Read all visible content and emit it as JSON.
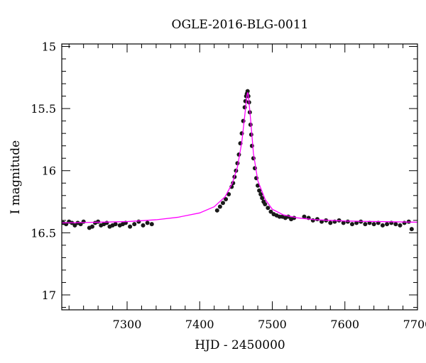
{
  "chart_data": {
    "type": "scatter",
    "title": "OGLE-2016-BLG-0011",
    "xlabel": "HJD - 2450000",
    "ylabel": "I magnitude",
    "xlim": [
      7210,
      7700
    ],
    "ylim": [
      17.12,
      14.98
    ],
    "y_inverted": true,
    "x_ticks": [
      7300,
      7400,
      7500,
      7600,
      7700
    ],
    "y_ticks": [
      15,
      15.5,
      16,
      16.5,
      17
    ],
    "x_tick_labels": [
      "7300",
      "7400",
      "7500",
      "7600",
      "7700"
    ],
    "y_tick_labels": [
      "15",
      "15.5",
      "16",
      "16.5",
      "17"
    ],
    "grid": false,
    "series": [
      {
        "kind": "points",
        "color": "#1a1a1a",
        "x": [
          7212,
          7216,
          7220,
          7224,
          7228,
          7232,
          7236,
          7240,
          7248,
          7252,
          7256,
          7260,
          7264,
          7268,
          7272,
          7276,
          7280,
          7284,
          7290,
          7294,
          7298,
          7304,
          7310,
          7316,
          7322,
          7328,
          7334,
          7424,
          7428,
          7432,
          7436,
          7440,
          7444,
          7446,
          7448,
          7450,
          7452,
          7454,
          7456,
          7458,
          7460,
          7462,
          7463,
          7464,
          7465,
          7466,
          7467,
          7468,
          7469,
          7470,
          7471,
          7472,
          7474,
          7476,
          7478,
          7480,
          7482,
          7484,
          7486,
          7488,
          7490,
          7494,
          7498,
          7502,
          7506,
          7510,
          7514,
          7518,
          7522,
          7526,
          7530,
          7544,
          7550,
          7556,
          7562,
          7568,
          7574,
          7580,
          7586,
          7592,
          7598,
          7604,
          7610,
          7616,
          7622,
          7628,
          7634,
          7640,
          7646,
          7652,
          7658,
          7664,
          7670,
          7676,
          7682,
          7688,
          7692
        ],
        "y": [
          16.42,
          16.43,
          16.41,
          16.42,
          16.44,
          16.42,
          16.43,
          16.41,
          16.46,
          16.45,
          16.42,
          16.41,
          16.44,
          16.43,
          16.42,
          16.45,
          16.44,
          16.43,
          16.44,
          16.43,
          16.42,
          16.45,
          16.43,
          16.41,
          16.44,
          16.42,
          16.43,
          16.32,
          16.29,
          16.26,
          16.23,
          16.19,
          16.13,
          16.1,
          16.05,
          16.0,
          15.94,
          15.87,
          15.78,
          15.7,
          15.6,
          15.49,
          15.44,
          15.4,
          15.38,
          15.36,
          15.4,
          15.45,
          15.53,
          15.63,
          15.71,
          15.8,
          15.9,
          15.98,
          16.06,
          16.12,
          16.16,
          16.19,
          16.22,
          16.25,
          16.27,
          16.3,
          16.33,
          16.35,
          16.36,
          16.37,
          16.37,
          16.38,
          16.37,
          16.39,
          16.38,
          16.37,
          16.38,
          16.4,
          16.39,
          16.41,
          16.4,
          16.42,
          16.41,
          16.4,
          16.42,
          16.41,
          16.43,
          16.42,
          16.41,
          16.43,
          16.42,
          16.43,
          16.42,
          16.44,
          16.43,
          16.42,
          16.43,
          16.44,
          16.42,
          16.41,
          16.47
        ]
      },
      {
        "kind": "model",
        "color": "#ff00ff",
        "x": [
          7210,
          7260,
          7300,
          7340,
          7370,
          7400,
          7420,
          7435,
          7445,
          7452,
          7458,
          7462,
          7465,
          7466,
          7467,
          7470,
          7474,
          7480,
          7490,
          7500,
          7515,
          7535,
          7560,
          7600,
          7650,
          7700
        ],
        "y": [
          16.42,
          16.415,
          16.41,
          16.395,
          16.375,
          16.34,
          16.29,
          16.21,
          16.1,
          15.97,
          15.77,
          15.56,
          15.4,
          15.37,
          15.39,
          15.58,
          15.86,
          16.08,
          16.23,
          16.31,
          16.355,
          16.38,
          16.395,
          16.405,
          16.41,
          16.415
        ]
      }
    ]
  }
}
